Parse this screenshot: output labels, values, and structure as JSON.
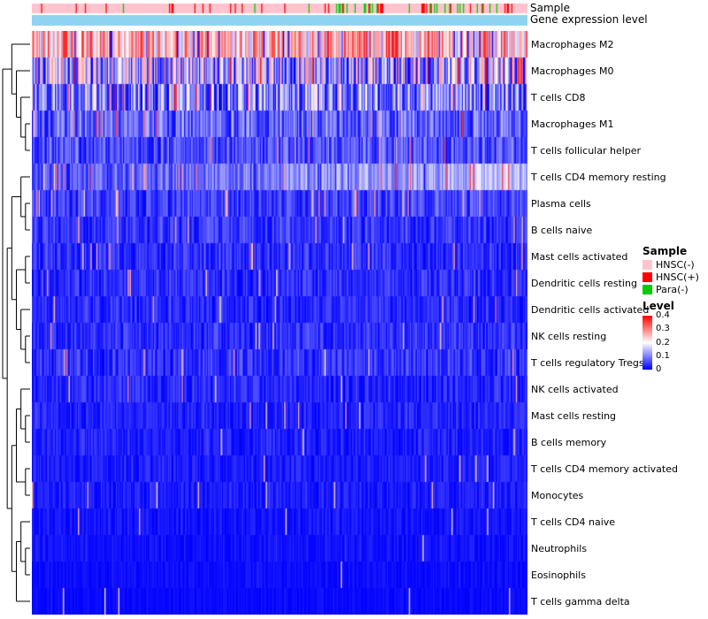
{
  "annotations": {
    "sample_label": "Sample",
    "gene_label": "Gene expression level",
    "gene_bar_color": "#8ED3F0",
    "sample_colors": {
      "hnsc_neg": "#FFC3CE",
      "hnsc_pos": "#FF0000",
      "para_neg": "#00CC00"
    }
  },
  "legend": {
    "sample_title": "Sample",
    "sample_items": [
      {
        "label": "HNSC(-)",
        "color": "#FFC3CE"
      },
      {
        "label": "HNSC(+)",
        "color": "#FF0000"
      },
      {
        "label": "Para(-)",
        "color": "#00CC00"
      }
    ],
    "level_title": "Level",
    "level_ticks": [
      "0.4",
      "0.3",
      "0.2",
      "0.1",
      "0"
    ],
    "level_high_color": "#FF0000",
    "level_mid_color": "#FFFFFF",
    "level_low_color": "#0000FF"
  },
  "chart_data": {
    "type": "heatmap",
    "n_columns": 430,
    "seed": 42,
    "value_range": [
      0,
      0.4
    ],
    "colormap": {
      "low": "#0000FF",
      "mid": "#FFFFFF",
      "high": "#FF0000",
      "mid_value": 0.2
    },
    "spike_add": 0.22,
    "dip_sub": 0.24,
    "rows": [
      {
        "label": "Macrophages M2",
        "base": 0.24,
        "spread": 0.26,
        "trend": 0,
        "spike_prob": 0.03,
        "dip_prob": 0.06
      },
      {
        "label": "Macrophages M0",
        "base": 0.13,
        "spread": 0.32,
        "trend": 0,
        "spike_prob": 0.06,
        "dip_prob": 0.1
      },
      {
        "label": "T cells CD8",
        "base": 0.1,
        "spread": 0.24,
        "trend": 0,
        "spike_prob": 0.05,
        "dip_prob": 0.08
      },
      {
        "label": "Macrophages M1",
        "base": 0.07,
        "spread": 0.15,
        "trend": 0,
        "spike_prob": 0.03,
        "dip_prob": 0.04
      },
      {
        "label": "T cells follicular helper",
        "base": 0.055,
        "spread": 0.12,
        "trend": 0,
        "spike_prob": 0.025,
        "dip_prob": 0.03
      },
      {
        "label": "T cells CD4 memory resting",
        "base": 0.05,
        "spread": 0.11,
        "trend": 0.09,
        "spike_prob": 0.03,
        "dip_prob": 0.02
      },
      {
        "label": "Plasma cells",
        "base": 0.04,
        "spread": 0.1,
        "trend": 0.01,
        "spike_prob": 0.035,
        "dip_prob": 0
      },
      {
        "label": "B cells naive",
        "base": 0.035,
        "spread": 0.09,
        "trend": 0,
        "spike_prob": 0.025,
        "dip_prob": 0
      },
      {
        "label": "Mast cells activated",
        "base": 0.03,
        "spread": 0.085,
        "trend": 0,
        "spike_prob": 0.02,
        "dip_prob": 0
      },
      {
        "label": "Dendritic cells resting",
        "base": 0.03,
        "spread": 0.08,
        "trend": 0,
        "spike_prob": 0.02,
        "dip_prob": 0
      },
      {
        "label": "Dendritic cells activated",
        "base": 0.026,
        "spread": 0.075,
        "trend": 0,
        "spike_prob": 0.018,
        "dip_prob": 0
      },
      {
        "label": "NK cells resting",
        "base": 0.03,
        "spread": 0.08,
        "trend": 0,
        "spike_prob": 0.02,
        "dip_prob": 0
      },
      {
        "label": "T cells regulatory  Tregs",
        "base": 0.034,
        "spread": 0.09,
        "trend": 0,
        "spike_prob": 0.02,
        "dip_prob": 0
      },
      {
        "label": "NK cells activated",
        "base": 0.024,
        "spread": 0.07,
        "trend": 0,
        "spike_prob": 0.015,
        "dip_prob": 0
      },
      {
        "label": "Mast cells resting",
        "base": 0.02,
        "spread": 0.065,
        "trend": 0,
        "spike_prob": 0.015,
        "dip_prob": 0
      },
      {
        "label": "B cells memory",
        "base": 0.02,
        "spread": 0.06,
        "trend": 0,
        "spike_prob": 0.012,
        "dip_prob": 0
      },
      {
        "label": "T cells CD4 memory activated",
        "base": 0.018,
        "spread": 0.055,
        "trend": 0,
        "spike_prob": 0.012,
        "dip_prob": 0
      },
      {
        "label": "Monocytes",
        "base": 0.018,
        "spread": 0.055,
        "trend": 0,
        "spike_prob": 0.012,
        "dip_prob": 0
      },
      {
        "label": "T cells CD4 naive",
        "base": 0.012,
        "spread": 0.045,
        "trend": 0,
        "spike_prob": 0.01,
        "dip_prob": 0
      },
      {
        "label": "Neutrophils",
        "base": 0.01,
        "spread": 0.04,
        "trend": 0,
        "spike_prob": 0.008,
        "dip_prob": 0
      },
      {
        "label": "Eosinophils",
        "base": 0.006,
        "spread": 0.03,
        "trend": 0,
        "spike_prob": 0.006,
        "dip_prob": 0
      },
      {
        "label": "T cells gamma delta",
        "base": 0.004,
        "spread": 0.025,
        "trend": 0,
        "spike_prob": 0.01,
        "dip_prob": 0
      }
    ],
    "annotation_model": {
      "green_prob_segments": [
        [
          0.3,
          0.008
        ],
        [
          0.55,
          0.04
        ],
        [
          1.0,
          0.13
        ]
      ],
      "red_base": 0.04,
      "red_slope": 0.1
    },
    "dendrogram": [
      [
        0,
        [
          1,
          [
            2,
            [
              3,
              4
            ]
          ]
        ]
      ],
      [
        [
          [
            5,
            [
              6,
              7
            ]
          ],
          [
            [
              8,
              9
            ],
            [
              10,
              [
                11,
                12
              ]
            ]
          ]
        ],
        [
          [
            [
              13,
              [
                14,
                15
              ]
            ],
            [
              16,
              17
            ]
          ],
          [
            [
              18,
              [
                19,
                20
              ]
            ],
            21
          ]
        ]
      ]
    ]
  }
}
